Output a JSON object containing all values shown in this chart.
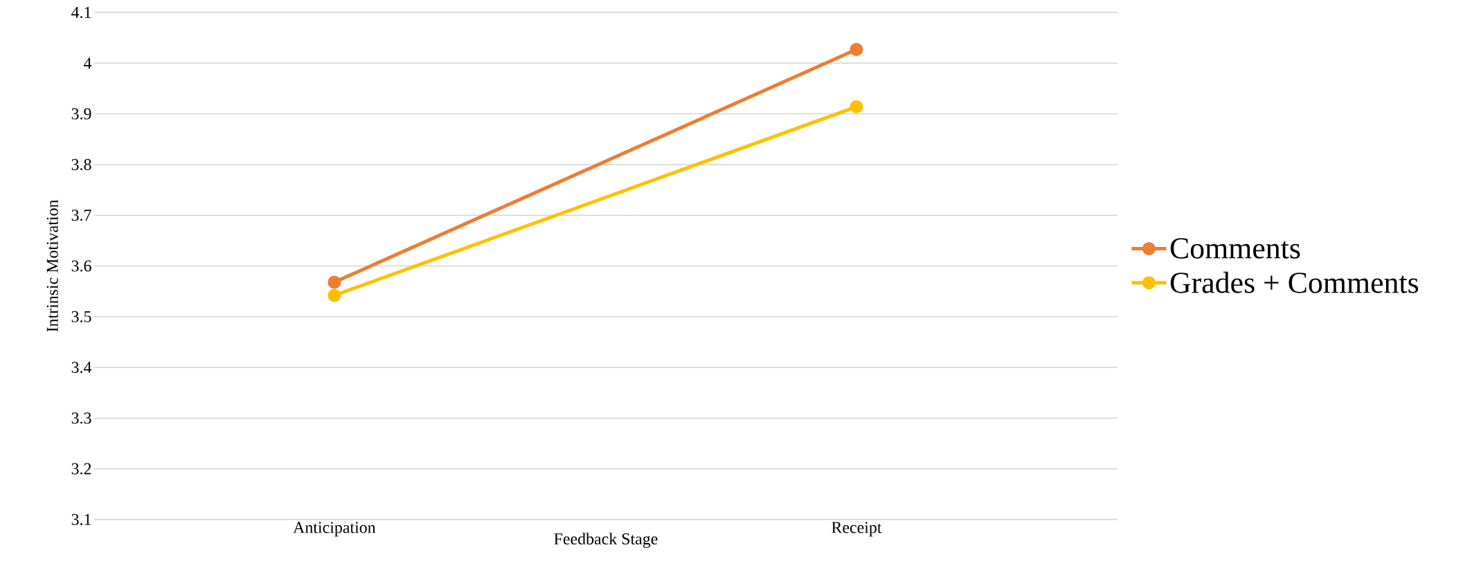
{
  "chart_data": {
    "type": "line",
    "xlabel": "Feedback Stage",
    "ylabel": "Intrinsic Motivation",
    "categories": [
      "Anticipation",
      "Receipt"
    ],
    "series": [
      {
        "name": "Comments",
        "color": "#ed7d31",
        "values": [
          3.568,
          4.027
        ]
      },
      {
        "name": "Grades + Comments",
        "color": "#ffc000",
        "values": [
          3.542,
          3.914
        ]
      }
    ],
    "ylim": [
      3.1,
      4.1
    ],
    "yticks": [
      3.1,
      3.2,
      3.3,
      3.4,
      3.5,
      3.6,
      3.7,
      3.8,
      3.9,
      4,
      4.1
    ],
    "grid": "y",
    "legend": "right",
    "marker": "circle",
    "line_style": "solid"
  }
}
